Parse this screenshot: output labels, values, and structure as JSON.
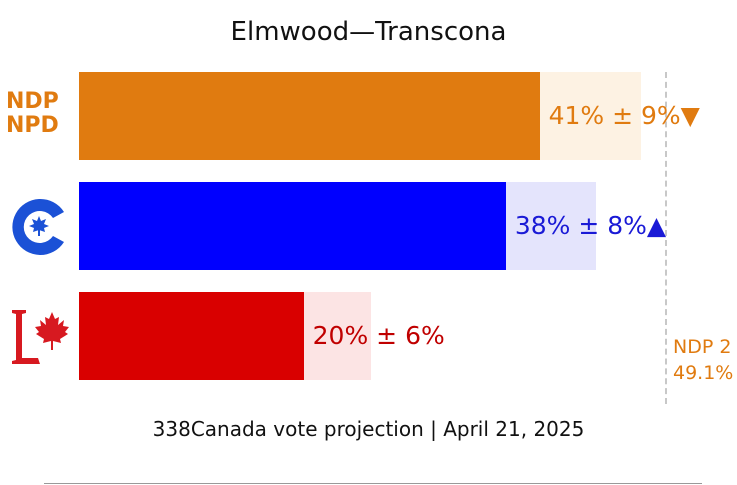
{
  "chart_data": {
    "type": "bar",
    "orientation": "horizontal",
    "title": "Elmwood—Transcona",
    "caption": "338Canada vote projection | April 21, 2025",
    "xlim": [
      0,
      60
    ],
    "series": [
      {
        "name": "NDP",
        "logo_lines": [
          "NDP",
          "NPD"
        ],
        "value": 41,
        "margin": 9,
        "trend": "▼",
        "label": "41% ± 9%▼",
        "color": "#e07b10",
        "ci_color": "#fdf2e3",
        "label_color": "#e07b10"
      },
      {
        "name": "CPC",
        "value": 38,
        "margin": 8,
        "trend": "▲",
        "label": "38% ± 8%▲",
        "color": "#0000ff",
        "ci_color": "#e4e4fc",
        "label_color": "#1a1ad6"
      },
      {
        "name": "LPC",
        "value": 20,
        "margin": 6,
        "trend": "",
        "label": "20% ± 6%",
        "color": "#d90000",
        "ci_color": "#fce4e4",
        "label_color": "#c00000"
      }
    ],
    "reference": {
      "value": 49.1,
      "label_line1": "NDP 2",
      "label_line2": "49.1%",
      "color": "#e07b10"
    }
  }
}
